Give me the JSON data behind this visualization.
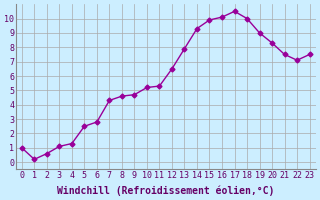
{
  "x_values": [
    0,
    1,
    2,
    3,
    4,
    5,
    6,
    7,
    8,
    9,
    10,
    11,
    12,
    13,
    14,
    15,
    16,
    17,
    18,
    19,
    20,
    21,
    22,
    23
  ],
  "y_values": [
    1.0,
    0.2,
    0.6,
    1.1,
    1.3,
    2.5,
    2.8,
    4.3,
    4.6,
    4.7,
    5.2,
    5.3,
    6.5,
    7.9,
    9.3,
    9.9,
    10.1,
    10.5,
    10.0,
    9.0,
    8.3,
    7.5,
    7.1,
    7.5
  ],
  "line_color": "#990099",
  "marker": "D",
  "marker_size": 2.5,
  "background_color": "#cceeff",
  "grid_color": "#aaaaaa",
  "xlabel": "Windchill (Refroidissement éolien,°C)",
  "xlim": [
    -0.5,
    23.5
  ],
  "ylim": [
    -0.5,
    11
  ],
  "xtick_labels": [
    "0",
    "1",
    "2",
    "3",
    "4",
    "5",
    "6",
    "7",
    "8",
    "9",
    "10",
    "11",
    "12",
    "13",
    "14",
    "15",
    "16",
    "17",
    "18",
    "19",
    "20",
    "21",
    "22",
    "23"
  ],
  "ytick_labels": [
    "0",
    "1",
    "2",
    "3",
    "4",
    "5",
    "6",
    "7",
    "8",
    "9",
    "10"
  ],
  "font_color": "#660066",
  "tick_fontsize": 6,
  "xlabel_fontsize": 7
}
